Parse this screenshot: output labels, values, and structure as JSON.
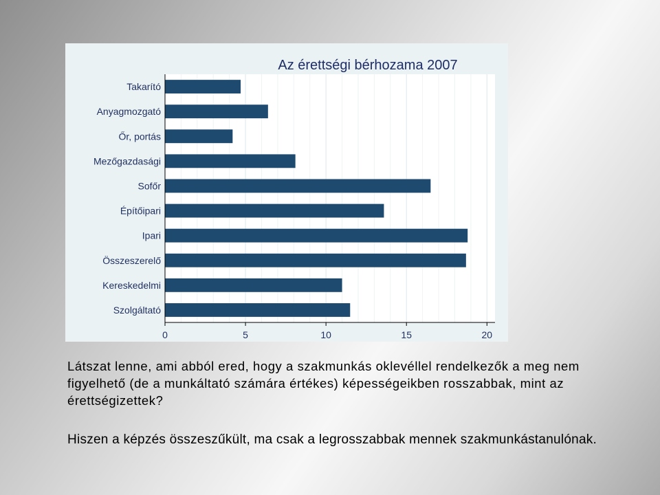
{
  "chart_data": {
    "type": "bar",
    "orientation": "horizontal",
    "title": "Az érettségi bérhozama 2007",
    "categories": [
      "Takarító",
      "Anyagmozgató",
      "Őr, portás",
      "Mezőgazdasági",
      "Sofőr",
      "Építőipari",
      "Ipari",
      "Összeszerelő",
      "Kereskedelmi",
      "Szolgáltató"
    ],
    "values": [
      4.7,
      6.4,
      4.2,
      8.1,
      16.5,
      13.6,
      18.8,
      18.7,
      11.0,
      11.5
    ],
    "xlim": [
      0,
      20.5
    ],
    "xticks": [
      0,
      5,
      10,
      15,
      20
    ],
    "xlabel": "",
    "ylabel": "",
    "bar_color": "#1f4a70",
    "plot_background": "#ffffff",
    "panel_background": "#eaf2f3",
    "gridlines": "vertical"
  },
  "text": {
    "question": "Látszat lenne, ami abból ered, hogy a szakmunkás oklevéllel rendelkezők a meg nem figyelhető (de a munkáltató számára értékes) képességeikben rosszabbak, mint az érettségizettek?",
    "statement": "Hiszen a képzés összeszűkült, ma csak a legrosszabbak mennek szakmunkástanulónak."
  }
}
